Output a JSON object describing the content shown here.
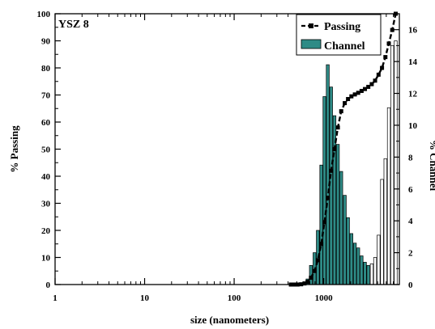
{
  "chart_data": {
    "type": "bar+line",
    "title": "YSZ 8",
    "xlabel": "size (nanometers)",
    "ylabel_left": "% Passing",
    "ylabel_right": "% Channel",
    "xscale": "log",
    "xlim": [
      1,
      7000
    ],
    "ylim_left": [
      0,
      100
    ],
    "ylim_right": [
      0,
      17
    ],
    "x_ticks": [
      {
        "value": 1,
        "label": "1"
      },
      {
        "value": 10,
        "label": "10"
      },
      {
        "value": 100,
        "label": "100"
      },
      {
        "value": 1000,
        "label": "1000"
      }
    ],
    "y_ticks_left": [
      "0",
      "10",
      "20",
      "30",
      "40",
      "50",
      "60",
      "70",
      "80",
      "90",
      "100"
    ],
    "y_ticks_right": [
      "0",
      "2",
      "4",
      "6",
      "8",
      "10",
      "12",
      "14",
      "16"
    ],
    "legend_position": "top-right",
    "grid": false,
    "series": [
      {
        "name": "Passing",
        "kind": "line",
        "axis": "left",
        "color": "#000000",
        "line_style": "dashed",
        "marker": "square",
        "points": [
          {
            "x": 430,
            "y": 0
          },
          {
            "x": 470,
            "y": 0
          },
          {
            "x": 510,
            "y": 0
          },
          {
            "x": 560,
            "y": 0.1
          },
          {
            "x": 610,
            "y": 0.4
          },
          {
            "x": 660,
            "y": 1
          },
          {
            "x": 720,
            "y": 2.5
          },
          {
            "x": 790,
            "y": 5
          },
          {
            "x": 860,
            "y": 9
          },
          {
            "x": 940,
            "y": 15
          },
          {
            "x": 1020,
            "y": 23
          },
          {
            "x": 1110,
            "y": 32
          },
          {
            "x": 1210,
            "y": 42
          },
          {
            "x": 1320,
            "y": 50
          },
          {
            "x": 1440,
            "y": 58
          },
          {
            "x": 1570,
            "y": 64
          },
          {
            "x": 1720,
            "y": 67
          },
          {
            "x": 1870,
            "y": 68.5
          },
          {
            "x": 2040,
            "y": 69.5
          },
          {
            "x": 2230,
            "y": 70.2
          },
          {
            "x": 2430,
            "y": 70.8
          },
          {
            "x": 2650,
            "y": 71.5
          },
          {
            "x": 2890,
            "y": 72.2
          },
          {
            "x": 3150,
            "y": 73
          },
          {
            "x": 3440,
            "y": 74
          },
          {
            "x": 3750,
            "y": 75.3
          },
          {
            "x": 4100,
            "y": 77.5
          },
          {
            "x": 4480,
            "y": 80
          },
          {
            "x": 4890,
            "y": 84
          },
          {
            "x": 5340,
            "y": 89
          },
          {
            "x": 5830,
            "y": 94
          },
          {
            "x": 6370,
            "y": 100
          }
        ]
      },
      {
        "name": "Channel",
        "kind": "bar",
        "axis": "right",
        "colors": {
          "fill": "#2e8b86",
          "edge": "#000000",
          "outline_fill": "#ffffff"
        },
        "bars": [
          {
            "x": 430,
            "y": 0.05
          },
          {
            "x": 470,
            "y": 0.05
          },
          {
            "x": 510,
            "y": 0.05
          },
          {
            "x": 560,
            "y": 0.08
          },
          {
            "x": 610,
            "y": 0.15
          },
          {
            "x": 660,
            "y": 0.35
          },
          {
            "x": 720,
            "y": 1.2
          },
          {
            "x": 790,
            "y": 2
          },
          {
            "x": 860,
            "y": 3.4
          },
          {
            "x": 940,
            "y": 7.5
          },
          {
            "x": 1020,
            "y": 11.8
          },
          {
            "x": 1110,
            "y": 13.8
          },
          {
            "x": 1210,
            "y": 12.4
          },
          {
            "x": 1320,
            "y": 10.6
          },
          {
            "x": 1440,
            "y": 8.8
          },
          {
            "x": 1570,
            "y": 7.1
          },
          {
            "x": 1720,
            "y": 5.6
          },
          {
            "x": 1870,
            "y": 4.2
          },
          {
            "x": 2040,
            "y": 3.2
          },
          {
            "x": 2230,
            "y": 2.6
          },
          {
            "x": 2430,
            "y": 2.3
          },
          {
            "x": 2650,
            "y": 1.8
          },
          {
            "x": 2890,
            "y": 1.4
          },
          {
            "x": 3150,
            "y": 1.2
          },
          {
            "x": 3440,
            "y": 1.3
          },
          {
            "x": 3750,
            "y": 1.7
          },
          {
            "x": 4100,
            "y": 3.1
          },
          {
            "x": 4480,
            "y": 6.6
          },
          {
            "x": 4890,
            "y": 7.9
          },
          {
            "x": 5340,
            "y": 11.1
          },
          {
            "x": 5830,
            "y": 15
          },
          {
            "x": 6370,
            "y": 15.3
          }
        ]
      }
    ]
  }
}
